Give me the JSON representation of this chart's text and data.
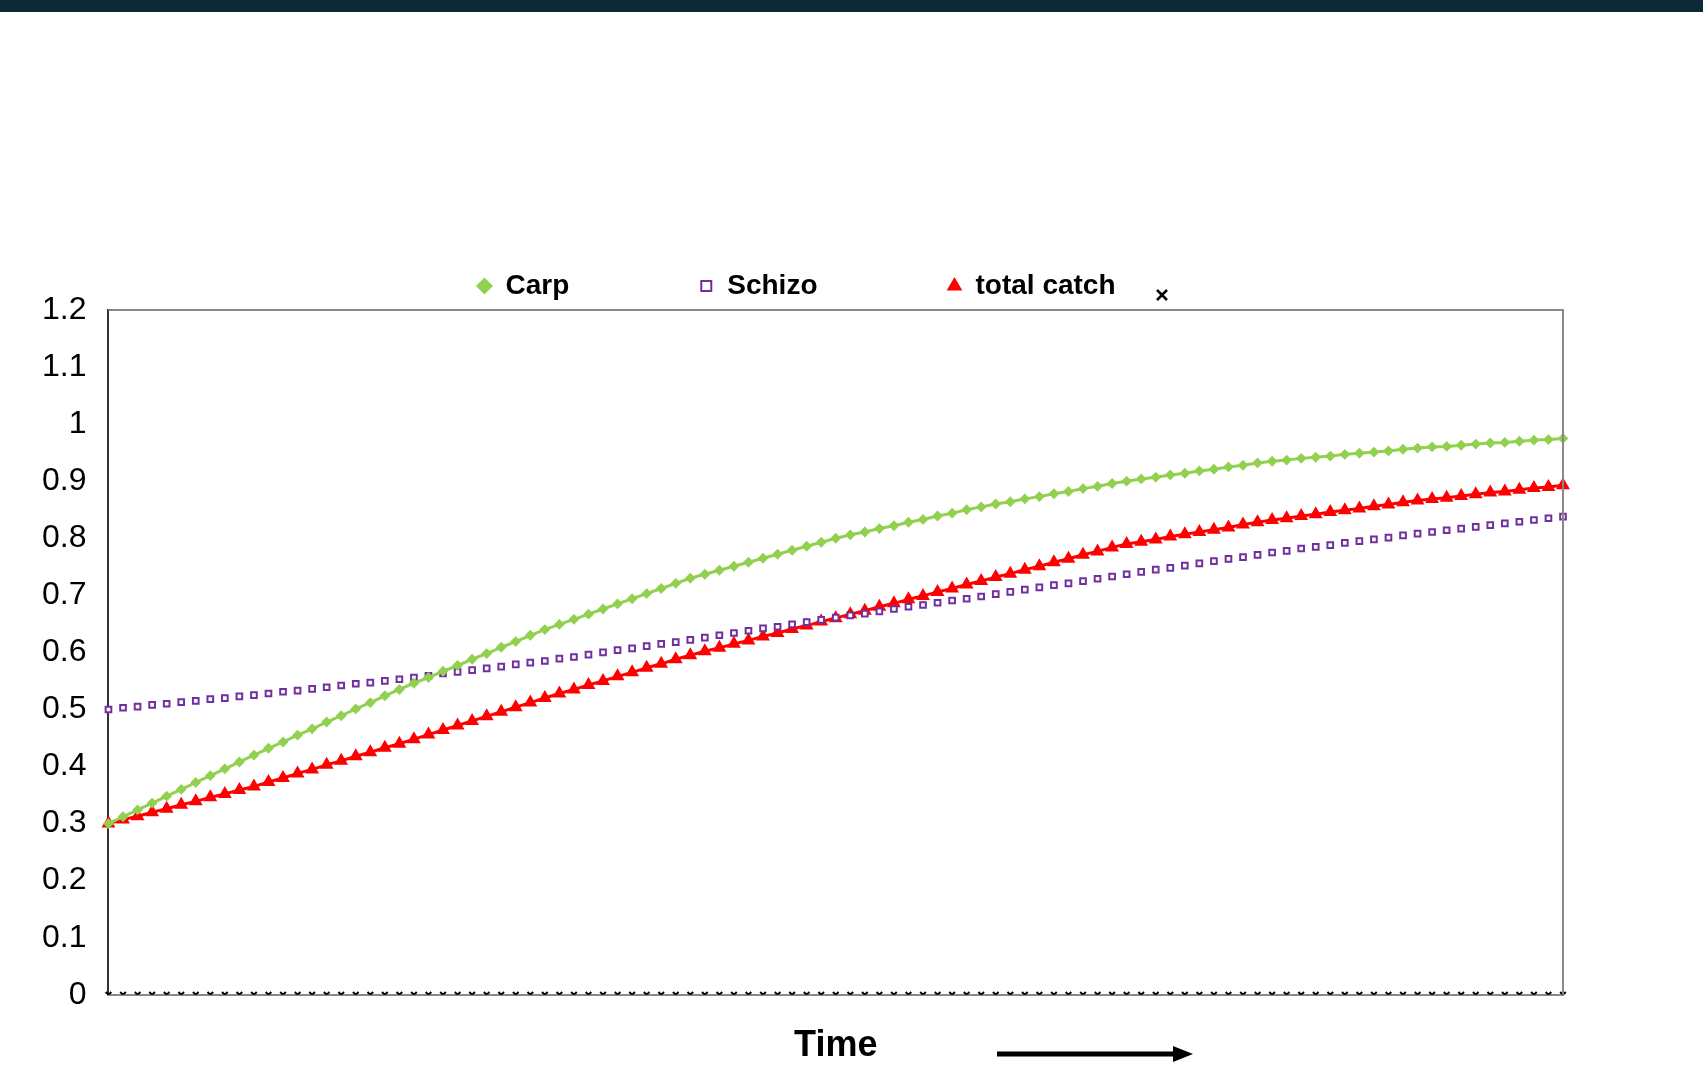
{
  "chart_data": {
    "type": "line",
    "xlabel": "Time",
    "categories": [
      null,
      null,
      null,
      null,
      null,
      null,
      null,
      null,
      null,
      null,
      null,
      null,
      null,
      null,
      null,
      null,
      null,
      null,
      null,
      null,
      null,
      null,
      null,
      null,
      null,
      null,
      null,
      null,
      null,
      null,
      null,
      null,
      null,
      null,
      null,
      null,
      null,
      null,
      null,
      null,
      null,
      null,
      null,
      null,
      null,
      null,
      null,
      null,
      null,
      null,
      null,
      null,
      null,
      null,
      null,
      null,
      null,
      null,
      null,
      null,
      null,
      null,
      null,
      null,
      null,
      null,
      null,
      null,
      null,
      null,
      null,
      null,
      null,
      null,
      null,
      null,
      null,
      null,
      null,
      null,
      null,
      null,
      null,
      null,
      null,
      null,
      null,
      null,
      null,
      null,
      null,
      null,
      null,
      null,
      null,
      null,
      null,
      null,
      null,
      null,
      null
    ],
    "ylim": [
      0,
      1.2
    ],
    "yticks": [
      0,
      0.1,
      0.2,
      0.3,
      0.4,
      0.5,
      0.6,
      0.7,
      0.8,
      0.9,
      1,
      1.1,
      1.2
    ],
    "grid": false,
    "legend": "top",
    "tick_labels": "y",
    "series": [
      {
        "name": "Carp",
        "type": "line",
        "color": "#92d050",
        "marker": "diamond",
        "values": [
          0.3,
          0.312,
          0.324,
          0.336,
          0.348,
          0.36,
          0.372,
          0.384,
          0.396,
          0.408,
          0.42,
          0.432,
          0.443,
          0.455,
          0.466,
          0.478,
          0.489,
          0.501,
          0.512,
          0.524,
          0.535,
          0.546,
          0.556,
          0.567,
          0.577,
          0.588,
          0.598,
          0.609,
          0.619,
          0.63,
          0.64,
          0.649,
          0.658,
          0.667,
          0.676,
          0.685,
          0.694,
          0.703,
          0.712,
          0.721,
          0.73,
          0.737,
          0.744,
          0.751,
          0.758,
          0.765,
          0.772,
          0.779,
          0.786,
          0.793,
          0.8,
          0.806,
          0.811,
          0.817,
          0.822,
          0.828,
          0.833,
          0.839,
          0.844,
          0.85,
          0.855,
          0.86,
          0.864,
          0.869,
          0.873,
          0.878,
          0.882,
          0.887,
          0.891,
          0.896,
          0.9,
          0.904,
          0.907,
          0.911,
          0.914,
          0.918,
          0.921,
          0.925,
          0.928,
          0.932,
          0.935,
          0.937,
          0.94,
          0.942,
          0.944,
          0.947,
          0.949,
          0.951,
          0.953,
          0.956,
          0.958,
          0.96,
          0.961,
          0.963,
          0.965,
          0.967,
          0.968,
          0.97,
          0.972,
          0.973,
          0.975
        ]
      },
      {
        "name": "Schizo",
        "type": "scatter",
        "color": "#7030a0",
        "marker": "square",
        "values": [
          0.5,
          0.503,
          0.505,
          0.508,
          0.51,
          0.513,
          0.515,
          0.518,
          0.52,
          0.523,
          0.525,
          0.528,
          0.531,
          0.533,
          0.536,
          0.539,
          0.542,
          0.545,
          0.547,
          0.55,
          0.553,
          0.556,
          0.559,
          0.563,
          0.566,
          0.569,
          0.572,
          0.575,
          0.579,
          0.582,
          0.585,
          0.589,
          0.592,
          0.596,
          0.6,
          0.604,
          0.607,
          0.611,
          0.615,
          0.618,
          0.622,
          0.626,
          0.63,
          0.634,
          0.638,
          0.642,
          0.645,
          0.649,
          0.653,
          0.657,
          0.661,
          0.665,
          0.668,
          0.672,
          0.676,
          0.68,
          0.683,
          0.687,
          0.691,
          0.694,
          0.698,
          0.702,
          0.706,
          0.71,
          0.714,
          0.718,
          0.721,
          0.725,
          0.729,
          0.733,
          0.737,
          0.741,
          0.745,
          0.748,
          0.752,
          0.756,
          0.76,
          0.764,
          0.767,
          0.771,
          0.775,
          0.778,
          0.782,
          0.785,
          0.788,
          0.792,
          0.795,
          0.798,
          0.801,
          0.805,
          0.808,
          0.811,
          0.814,
          0.817,
          0.82,
          0.823,
          0.826,
          0.829,
          0.832,
          0.835,
          0.838
        ]
      },
      {
        "name": "total catch",
        "type": "line",
        "color": "#ff0000",
        "marker": "triangle",
        "values": [
          0.3,
          0.307,
          0.313,
          0.32,
          0.326,
          0.333,
          0.339,
          0.346,
          0.352,
          0.359,
          0.365,
          0.373,
          0.38,
          0.388,
          0.395,
          0.403,
          0.41,
          0.418,
          0.425,
          0.433,
          0.44,
          0.448,
          0.456,
          0.464,
          0.472,
          0.48,
          0.488,
          0.496,
          0.504,
          0.512,
          0.52,
          0.528,
          0.535,
          0.543,
          0.55,
          0.558,
          0.565,
          0.573,
          0.58,
          0.588,
          0.595,
          0.602,
          0.608,
          0.615,
          0.621,
          0.628,
          0.634,
          0.641,
          0.647,
          0.654,
          0.66,
          0.667,
          0.673,
          0.68,
          0.686,
          0.693,
          0.699,
          0.706,
          0.712,
          0.719,
          0.725,
          0.732,
          0.738,
          0.745,
          0.751,
          0.758,
          0.764,
          0.771,
          0.777,
          0.784,
          0.79,
          0.794,
          0.798,
          0.803,
          0.807,
          0.811,
          0.815,
          0.819,
          0.824,
          0.828,
          0.832,
          0.835,
          0.839,
          0.842,
          0.846,
          0.849,
          0.852,
          0.856,
          0.859,
          0.863,
          0.866,
          0.869,
          0.871,
          0.874,
          0.877,
          0.88,
          0.882,
          0.885,
          0.888,
          0.89,
          0.893
        ]
      },
      {
        "type": "scatter",
        "color": "#000000",
        "marker": "cross",
        "values": [
          0,
          0,
          0,
          0,
          0,
          0,
          0,
          0,
          0,
          0,
          0,
          0,
          0,
          0,
          0,
          0,
          0,
          0,
          0,
          0,
          0,
          0,
          0,
          0,
          0,
          0,
          0,
          0,
          0,
          0,
          0,
          0,
          0,
          0,
          0,
          0,
          0,
          0,
          0,
          0,
          0,
          0,
          0,
          0,
          0,
          0,
          0,
          0,
          0,
          0,
          0,
          0,
          0,
          0,
          0,
          0,
          0,
          0,
          0,
          0,
          0,
          0,
          0,
          0,
          0,
          0,
          0,
          0,
          0,
          0,
          0,
          0,
          0,
          0,
          0,
          0,
          0,
          0,
          0,
          0,
          0,
          0,
          0,
          0,
          0,
          0,
          0,
          0,
          0,
          0,
          0,
          0,
          0,
          0,
          0,
          0,
          0,
          0,
          0,
          0,
          0
        ]
      }
    ]
  }
}
